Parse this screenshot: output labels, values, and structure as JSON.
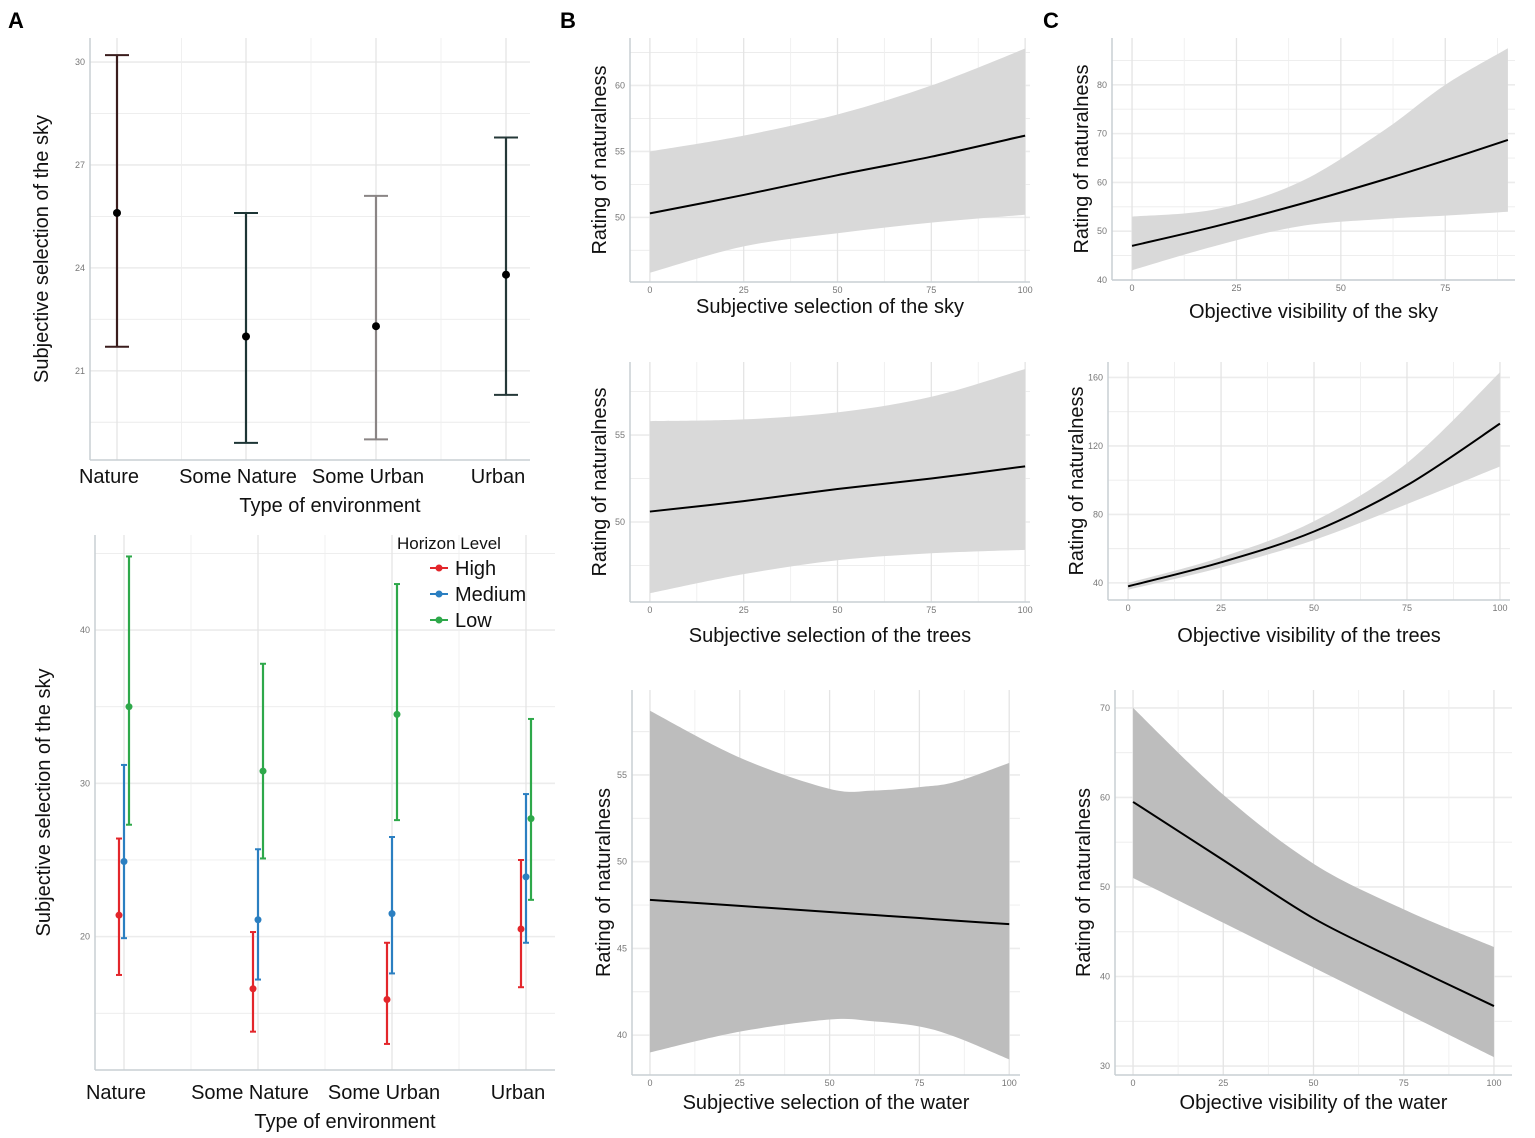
{
  "panel_letters": [
    "A",
    "B",
    "C"
  ],
  "chart_data": [
    {
      "id": "A_top",
      "type": "errorbar",
      "xlabel": "Type of environment",
      "ylabel": "Subjective selection of the sky",
      "categories": [
        "Nature",
        "Some Nature",
        "Some Urban",
        "Urban"
      ],
      "ylim": [
        18.4,
        30.7
      ],
      "yticks": [
        21,
        24,
        27,
        30
      ],
      "grid": true,
      "colors": [
        "#3a1d1d",
        "#1d3535",
        "#8a8585",
        "#253838"
      ],
      "mean": [
        25.6,
        22.0,
        22.3,
        23.8
      ],
      "lower": [
        21.7,
        18.9,
        19.0,
        20.3
      ],
      "upper": [
        30.2,
        25.6,
        26.1,
        27.8
      ]
    },
    {
      "id": "A_bottom",
      "type": "errorbar",
      "xlabel": "Type of environment",
      "ylabel": "Subjective selection of the sky",
      "categories": [
        "Nature",
        "Some Nature",
        "Some Urban",
        "Urban"
      ],
      "ylim": [
        11.3,
        46.2
      ],
      "yticks": [
        20,
        30,
        40
      ],
      "grid": true,
      "legend": {
        "title": "Horizon Level",
        "placement": "top-right"
      },
      "series": [
        {
          "name": "High",
          "color": "#e3262b",
          "mean": [
            21.4,
            16.6,
            15.9,
            20.5
          ],
          "lower": [
            17.5,
            13.8,
            13.0,
            16.7
          ],
          "upper": [
            26.4,
            20.3,
            19.6,
            25.0
          ]
        },
        {
          "name": "Medium",
          "color": "#2b7fc1",
          "mean": [
            24.9,
            21.1,
            21.5,
            23.9
          ],
          "lower": [
            19.9,
            17.2,
            17.6,
            19.6
          ],
          "upper": [
            31.2,
            25.7,
            26.5,
            29.3
          ]
        },
        {
          "name": "Low",
          "color": "#2ea84a",
          "mean": [
            35.0,
            30.8,
            34.5,
            27.7
          ],
          "lower": [
            27.3,
            25.1,
            27.6,
            22.4
          ],
          "upper": [
            44.8,
            37.8,
            43.0,
            34.2
          ]
        }
      ]
    },
    {
      "id": "B_sky",
      "type": "line",
      "xlabel": "Subjective selection of the sky",
      "ylabel": "Rating of naturalness",
      "xlim": [
        -5.3,
        101.3
      ],
      "ylim": [
        45.1,
        63.6
      ],
      "xticks": [
        0,
        25,
        50,
        75,
        100
      ],
      "yticks": [
        50,
        55,
        60
      ],
      "band_color": "#d9d9d9",
      "x": [
        0,
        25,
        50,
        75,
        100
      ],
      "y": [
        50.3,
        51.7,
        53.2,
        54.6,
        56.2
      ],
      "ci_upper": [
        55.0,
        56.2,
        57.8,
        60.0,
        62.8
      ],
      "ci_lower": [
        45.8,
        47.8,
        48.8,
        49.6,
        50.2
      ]
    },
    {
      "id": "C_sky",
      "type": "line",
      "xlabel": "Objective visibility of the sky",
      "ylabel": "Rating of naturalness",
      "xlim": [
        -4.8,
        91.7
      ],
      "ylim": [
        40,
        89.6
      ],
      "xticks": [
        0,
        25,
        50,
        75
      ],
      "yticks": [
        40,
        50,
        60,
        70,
        80
      ],
      "band_color": "#d9d9d9",
      "x": [
        0,
        20,
        40,
        60,
        75,
        90
      ],
      "y": [
        47.0,
        51.0,
        55.5,
        60.5,
        64.5,
        68.7
      ],
      "ci_upper": [
        53.0,
        54.5,
        60.0,
        70.5,
        80.0,
        87.5
      ],
      "ci_lower": [
        42.0,
        47.0,
        51.0,
        52.5,
        53.2,
        54.0
      ]
    },
    {
      "id": "B_trees",
      "type": "line",
      "xlabel": "Subjective selection of the trees",
      "ylabel": "Rating of naturalness",
      "xlim": [
        -5.3,
        101.3
      ],
      "ylim": [
        45.4,
        59.2
      ],
      "xticks": [
        0,
        25,
        50,
        75,
        100
      ],
      "yticks": [
        50,
        55
      ],
      "band_color": "#d9d9d9",
      "x": [
        0,
        25,
        50,
        75,
        100
      ],
      "y": [
        50.6,
        51.2,
        51.9,
        52.5,
        53.2
      ],
      "ci_upper": [
        55.8,
        55.9,
        56.3,
        57.2,
        58.8
      ],
      "ci_lower": [
        45.9,
        47.0,
        47.8,
        48.2,
        48.4
      ]
    },
    {
      "id": "C_trees",
      "type": "line",
      "xlabel": "Objective visibility of the trees",
      "ylabel": "Rating of naturalness",
      "xlim": [
        -5.4,
        102.7
      ],
      "ylim": [
        30,
        169
      ],
      "xticks": [
        0,
        25,
        50,
        75,
        100
      ],
      "yticks": [
        40,
        80,
        120,
        160
      ],
      "band_color": "#d9d9d9",
      "x": [
        0,
        25,
        50,
        75,
        100
      ],
      "y": [
        38,
        52,
        70,
        97,
        133
      ],
      "ci_upper": [
        40,
        55,
        76,
        110,
        163
      ],
      "ci_lower": [
        36,
        49,
        65,
        86,
        108
      ]
    },
    {
      "id": "B_water",
      "type": "line",
      "xlabel": "Subjective selection of the water",
      "ylabel": "Rating of naturalness",
      "xlim": [
        -5,
        103
      ],
      "ylim": [
        37.7,
        59.9
      ],
      "xticks": [
        0,
        25,
        50,
        75,
        100
      ],
      "yticks": [
        40,
        45,
        50,
        55
      ],
      "band_color": "#bdbdbd",
      "x": [
        0,
        25,
        50,
        62,
        75,
        85,
        100
      ],
      "y": [
        47.8,
        47.45,
        47.1,
        46.93,
        46.75,
        46.6,
        46.4
      ],
      "ci_upper": [
        58.7,
        56.0,
        54.2,
        54.1,
        54.3,
        54.6,
        55.7
      ],
      "ci_lower": [
        39.0,
        40.2,
        40.9,
        40.8,
        40.5,
        39.9,
        38.6
      ]
    },
    {
      "id": "C_water",
      "type": "line",
      "xlabel": "Objective visibility of the water",
      "ylabel": "Rating of naturalness",
      "xlim": [
        -5,
        105
      ],
      "ylim": [
        29,
        72
      ],
      "xticks": [
        0,
        25,
        50,
        75,
        100
      ],
      "yticks": [
        30,
        40,
        50,
        60,
        70
      ],
      "band_color": "#bdbdbd",
      "x": [
        0,
        25,
        50,
        75,
        100
      ],
      "y": [
        59.5,
        53.0,
        46.5,
        41.5,
        36.7
      ],
      "ci_upper": [
        70.0,
        60.3,
        52.6,
        47.5,
        43.3
      ],
      "ci_lower": [
        51.0,
        46.0,
        41.0,
        36.0,
        31.0
      ]
    }
  ]
}
